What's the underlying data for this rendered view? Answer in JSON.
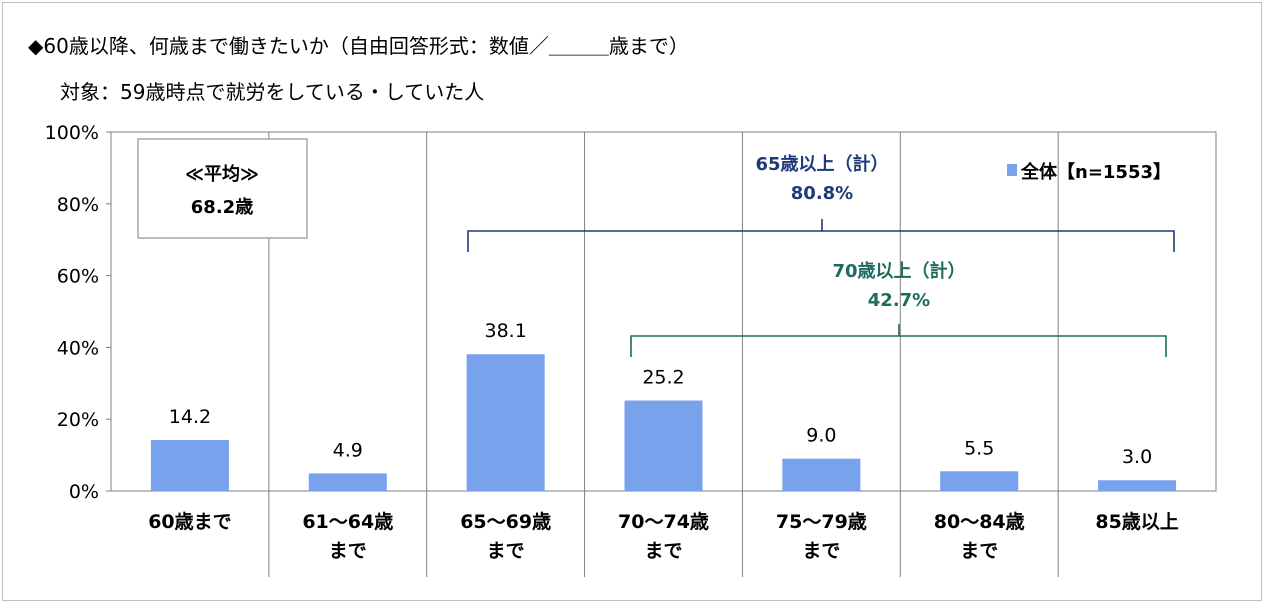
{
  "header": {
    "title": "◆60歳以降、何歳まで働きたいか（自由回答形式：数値／＿＿＿歳まで）",
    "subtitle": "対象：59歳時点で就労をしている・していた人"
  },
  "average_box": {
    "label": "≪平均≫",
    "value": "68.2歳"
  },
  "brackets": [
    {
      "label": "65歳以上（計）",
      "value": "80.8%",
      "color": "#1f3a7a"
    },
    {
      "label": "70歳以上（計）",
      "value": "42.7%",
      "color": "#1e6b5e"
    }
  ],
  "chart_data": {
    "type": "bar",
    "categories": [
      [
        "60歳まで"
      ],
      [
        "61～64歳",
        "まで"
      ],
      [
        "65～69歳",
        "まで"
      ],
      [
        "70～74歳",
        "まで"
      ],
      [
        "75～79歳",
        "まで"
      ],
      [
        "80～84歳",
        "まで"
      ],
      [
        "85歳以上"
      ]
    ],
    "series": [
      {
        "name": "全体【n=1553】",
        "values": [
          14.2,
          4.9,
          38.1,
          25.2,
          9.0,
          5.5,
          3.0
        ],
        "color": "#78a3ec"
      }
    ],
    "value_labels": [
      "14.2",
      "4.9",
      "38.1",
      "25.2",
      "9.0",
      "5.5",
      "3.0"
    ],
    "ylim": [
      0,
      100
    ],
    "yticks": [
      "0%",
      "20%",
      "40%",
      "60%",
      "80%",
      "100%"
    ],
    "legend_position": "top-right",
    "grid": true
  }
}
